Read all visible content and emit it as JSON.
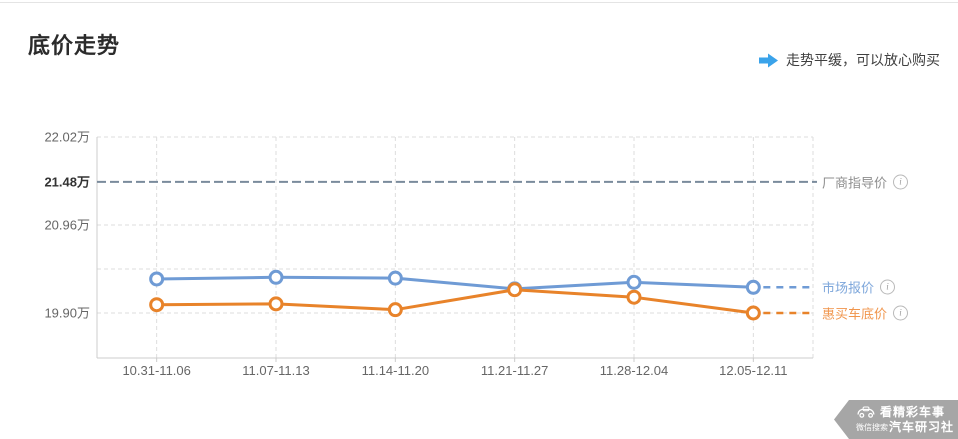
{
  "page": {
    "title": "底价走势",
    "tip": "走势平缓，可以放心购买"
  },
  "colors": {
    "tip_arrow": "#3aa3ea",
    "market_line": "#6f9bd5",
    "dealer_line": "#e8832a",
    "guide_line": "#7a8b9c",
    "legend_market_text": "#7ea7db",
    "legend_dealer_text": "#f0954c",
    "legend_guide_text": "#8e8e8e",
    "grid": "#dddddd",
    "axis": "#cccccc",
    "tick_label": "#666666",
    "bold_tick_label": "#333333"
  },
  "legend": {
    "info_glyph": "i"
  },
  "watermark": {
    "line1": "看精彩车事",
    "line2_prefix": "微信搜索",
    "line2": "汽车研习社"
  },
  "chart_data": {
    "type": "line",
    "title": "底价走势",
    "unit": "万",
    "categories": [
      "10.31-11.06",
      "11.07-11.13",
      "11.14-11.20",
      "11.21-11.27",
      "11.28-12.04",
      "12.05-12.11"
    ],
    "series": [
      {
        "name": "市场报价",
        "color": "#6f9bd5",
        "values": [
          20.31,
          20.33,
          20.32,
          20.19,
          20.27,
          20.21
        ]
      },
      {
        "name": "惠买车底价",
        "color": "#e8832a",
        "values": [
          20.0,
          20.01,
          19.94,
          20.18,
          20.09,
          19.9
        ]
      }
    ],
    "guide_line": {
      "name": "厂商指导价",
      "value": 21.48,
      "color": "#7a8b9c"
    },
    "y_ticks": [
      {
        "value": 22.02,
        "label": "22.02万"
      },
      {
        "value": 21.48,
        "label": "21.48万",
        "bold": true,
        "is_guide": true
      },
      {
        "value": 20.96,
        "label": "20.96万"
      },
      {
        "value": 20.43,
        "label": ""
      },
      {
        "value": 19.9,
        "label": "19.90万"
      }
    ],
    "ylim": [
      19.37,
      22.15
    ],
    "grid": true,
    "legend_position": "right"
  }
}
